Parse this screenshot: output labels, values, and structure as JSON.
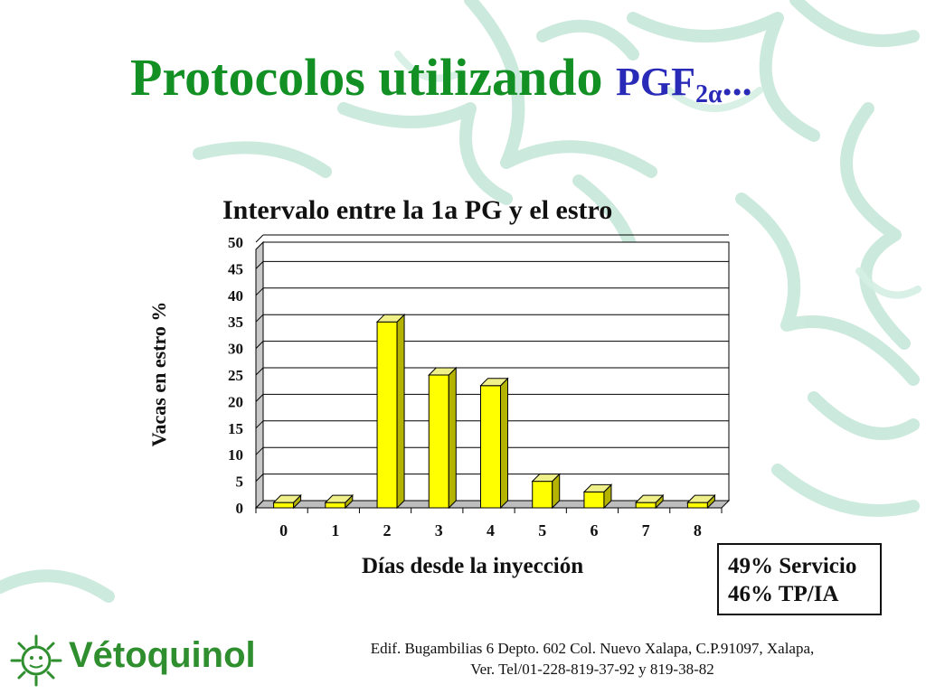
{
  "slide": {
    "title_main": "Protocolos utilizando",
    "title_pgf": "PGF",
    "title_sub": "2α",
    "title_tail": "..."
  },
  "chart_data": {
    "type": "bar",
    "title": "Intervalo entre la 1a PG y el estro",
    "xlabel": "Días desde la inyección",
    "ylabel": "Vacas en estro %",
    "categories": [
      "0",
      "1",
      "2",
      "3",
      "4",
      "5",
      "6",
      "7",
      "8"
    ],
    "values": [
      1,
      1,
      35,
      25,
      23,
      5,
      3,
      1,
      1
    ],
    "ylim": [
      0,
      50
    ],
    "yticks": [
      "0",
      "5",
      "10",
      "15",
      "20",
      "25",
      "30",
      "35",
      "40",
      "45",
      "50"
    ],
    "grid": true,
    "style": "3d-column",
    "colors": {
      "bar": "#ffff00",
      "bar_side": "#b3b300",
      "bar_top": "#f0f08a",
      "edge": "#000000"
    }
  },
  "stats": {
    "line1": "49% Servicio",
    "line2": "46% TP/IA"
  },
  "brand": {
    "name": "Vétoquinol",
    "logo_icon": "sun-face-icon",
    "color": "#2f8f2f"
  },
  "footer": {
    "line1": "Edif. Bugambilias 6 Depto. 602 Col. Nuevo Xalapa, C.P.91097, Xalapa,",
    "line2": "Ver. Tel/01-228-819-37-92 y 819-38-82"
  },
  "theme": {
    "title_color": "#129024",
    "accent_color": "#2a2ab8",
    "leaf_color": "#bfe3d4"
  }
}
